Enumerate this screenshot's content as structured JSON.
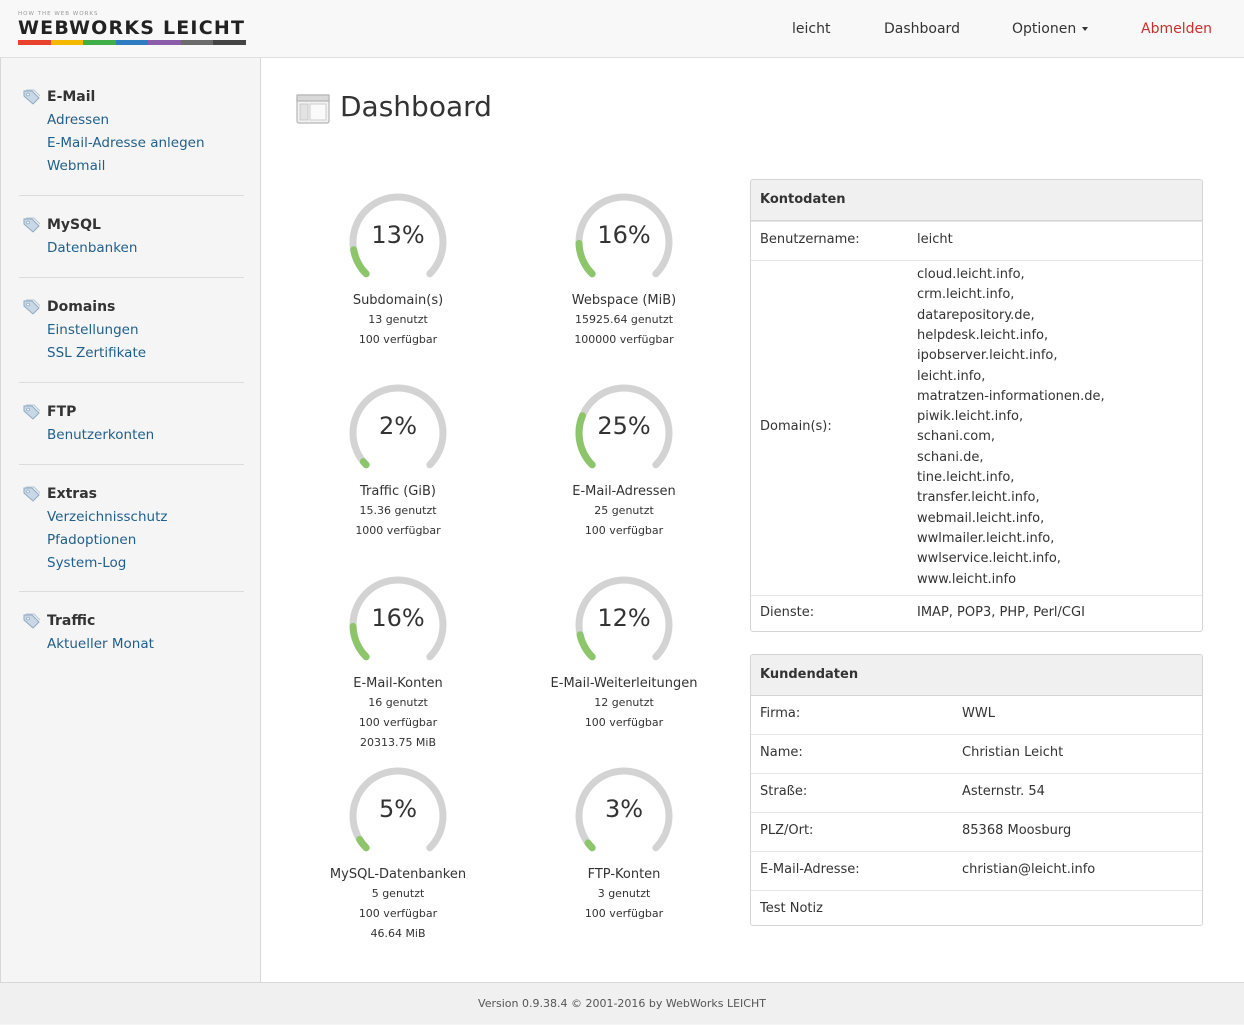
{
  "header": {
    "logo_tagline": "HOW THE WEB WORKS",
    "logo_text": "WEBWORKS LEICHT",
    "logo_colors": [
      "#e8412c",
      "#f5b800",
      "#3fae49",
      "#2e7bbf",
      "#8b5ca8",
      "#6b6b6b",
      "#444444"
    ],
    "nav": {
      "user": "leicht",
      "dashboard": "Dashboard",
      "options": "Optionen",
      "logout": "Abmelden"
    }
  },
  "sidebar": {
    "groups": [
      {
        "title": "E-Mail",
        "links": [
          "Adressen",
          "E-Mail-Adresse anlegen",
          "Webmail"
        ]
      },
      {
        "title": "MySQL",
        "links": [
          "Datenbanken"
        ]
      },
      {
        "title": "Domains",
        "links": [
          "Einstellungen",
          "SSL Zertifikate"
        ]
      },
      {
        "title": "FTP",
        "links": [
          "Benutzerkonten"
        ]
      },
      {
        "title": "Extras",
        "links": [
          "Verzeichnisschutz",
          "Pfadoptionen",
          "System-Log"
        ]
      },
      {
        "title": "Traffic",
        "links": [
          "Aktueller Monat"
        ]
      }
    ]
  },
  "main": {
    "title": "Dashboard",
    "gauges": [
      {
        "pct": "13%",
        "value": 0.13,
        "label": "Subdomain(s)",
        "lines": [
          "13 genutzt",
          "100 verfügbar"
        ]
      },
      {
        "pct": "16%",
        "value": 0.16,
        "label": "Webspace (MiB)",
        "lines": [
          "15925.64 genutzt",
          "100000 verfügbar"
        ]
      },
      {
        "pct": "2%",
        "value": 0.02,
        "label": "Traffic (GiB)",
        "lines": [
          "15.36 genutzt",
          "1000 verfügbar"
        ]
      },
      {
        "pct": "25%",
        "value": 0.25,
        "label": "E-Mail-Adressen",
        "lines": [
          "25 genutzt",
          "100 verfügbar"
        ]
      },
      {
        "pct": "16%",
        "value": 0.16,
        "label": "E-Mail-Konten",
        "lines": [
          "16 genutzt",
          "100 verfügbar",
          "20313.75 MiB"
        ]
      },
      {
        "pct": "12%",
        "value": 0.12,
        "label": "E-Mail-Weiterleitungen",
        "lines": [
          "12 genutzt",
          "100 verfügbar"
        ]
      },
      {
        "pct": "5%",
        "value": 0.05,
        "label": "MySQL-Datenbanken",
        "lines": [
          "5 genutzt",
          "100 verfügbar",
          "46.64 MiB"
        ]
      },
      {
        "pct": "3%",
        "value": 0.03,
        "label": "FTP-Konten",
        "lines": [
          "3 genutzt",
          "100 verfügbar"
        ]
      }
    ],
    "gauge_colors": {
      "track": "#d3d3d3",
      "fill": "#8cc56a"
    }
  },
  "kontodaten": {
    "title": "Kontodaten",
    "username_label": "Benutzername:",
    "username": "leicht",
    "domains_label": "Domain(s):",
    "domains": [
      "cloud.leicht.info,",
      "crm.leicht.info,",
      "datarepository.de,",
      "helpdesk.leicht.info,",
      "ipobserver.leicht.info,",
      "leicht.info,",
      "matratzen-informationen.de,",
      "piwik.leicht.info,",
      "schani.com,",
      "schani.de,",
      "tine.leicht.info,",
      "transfer.leicht.info,",
      "webmail.leicht.info,",
      "wwlmailer.leicht.info,",
      "wwlservice.leicht.info,",
      "www.leicht.info"
    ],
    "services_label": "Dienste:",
    "services": "IMAP, POP3, PHP, Perl/CGI"
  },
  "kundendaten": {
    "title": "Kundendaten",
    "rows": [
      {
        "k": "Firma:",
        "v": "WWL"
      },
      {
        "k": "Name:",
        "v": "Christian Leicht"
      },
      {
        "k": "Straße:",
        "v": "Asternstr. 54"
      },
      {
        "k": "PLZ/Ort:",
        "v": "85368 Moosburg"
      },
      {
        "k": "E-Mail-Adresse:",
        "v": "christian@leicht.info"
      },
      {
        "k": "Test Notiz",
        "v": ""
      }
    ]
  },
  "footer": {
    "text": "Version 0.9.38.4 © 2001-2016 by WebWorks LEICHT"
  }
}
